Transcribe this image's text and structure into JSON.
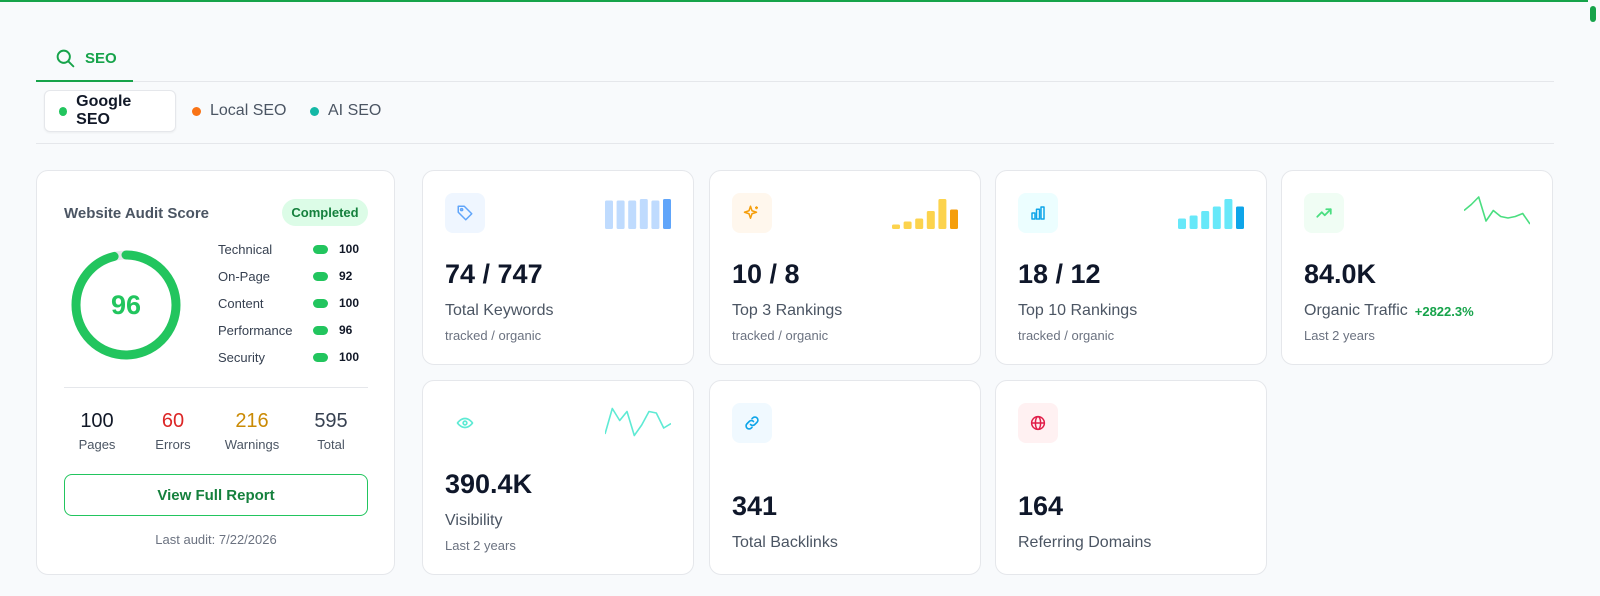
{
  "section_tab": {
    "label": "SEO",
    "icon": "search-icon",
    "accent": "#16a34a"
  },
  "sub_tabs": [
    {
      "label": "Google SEO",
      "dot_color": "#22c55e",
      "active": true
    },
    {
      "label": "Local SEO",
      "dot_color": "#f97316",
      "active": false
    },
    {
      "label": "AI SEO",
      "dot_color": "#14b8a6",
      "active": false
    }
  ],
  "audit": {
    "title": "Website Audit Score",
    "status": "Completed",
    "score": "96",
    "score_fraction": 0.96,
    "metrics": [
      {
        "label": "Technical",
        "value": "100"
      },
      {
        "label": "On-Page",
        "value": "92"
      },
      {
        "label": "Content",
        "value": "100"
      },
      {
        "label": "Performance",
        "value": "96"
      },
      {
        "label": "Security",
        "value": "100"
      }
    ],
    "stats": [
      {
        "value": "100",
        "label": "Pages",
        "color": "#111827"
      },
      {
        "value": "60",
        "label": "Errors",
        "color": "#dc2626"
      },
      {
        "value": "216",
        "label": "Warnings",
        "color": "#ca8a04"
      },
      {
        "value": "595",
        "label": "Total",
        "color": "#374151"
      }
    ],
    "button_label": "View Full Report",
    "last_audit": "Last audit: 7/22/2026"
  },
  "cards": [
    {
      "icon": "tag-icon",
      "value": "74 / 747",
      "label": "Total Keywords",
      "sub": "tracked / organic",
      "delta": "",
      "spark": "bars",
      "color": "#60a5fa",
      "light": "#bfdbfe",
      "bg": "#eff6ff",
      "bars": [
        0.95,
        0.95,
        0.95,
        1.0,
        0.95,
        1.0
      ]
    },
    {
      "icon": "sparkles-icon",
      "value": "10 / 8",
      "label": "Top 3 Rankings",
      "sub": "tracked / organic",
      "delta": "",
      "spark": "bars",
      "color": "#f59e0b",
      "light": "#fcd34d",
      "bg": "#fff7ed",
      "bars": [
        0.15,
        0.25,
        0.35,
        0.6,
        1.0,
        0.65
      ]
    },
    {
      "icon": "bar-chart-icon",
      "value": "18 / 12",
      "label": "Top 10 Rankings",
      "sub": "tracked / organic",
      "delta": "",
      "spark": "bars",
      "color": "#0ea5e9",
      "light": "#67e8f9",
      "bg": "#ecfeff",
      "bars": [
        0.35,
        0.45,
        0.6,
        0.75,
        1.0,
        0.75
      ]
    },
    {
      "icon": "trending-up-icon",
      "value": "84.0K",
      "label": "Organic Traffic",
      "sub": "Last 2 years",
      "delta": "+2822.3%",
      "spark": "line",
      "color": "#4ade80",
      "bg": "#f0fdf4",
      "line": [
        0.55,
        0.75,
        1.0,
        0.2,
        0.55,
        0.35,
        0.3,
        0.35,
        0.45,
        0.1
      ]
    },
    {
      "icon": "eye-icon",
      "value": "390.4K",
      "label": "Visibility",
      "sub": "Last 2 years",
      "delta": "",
      "spark": "line",
      "color": "#5eead4",
      "bg": "#ffffff",
      "line": [
        0.1,
        0.95,
        0.55,
        0.85,
        0.05,
        0.4,
        0.85,
        0.8,
        0.3,
        0.45
      ]
    },
    {
      "icon": "link-icon",
      "value": "341",
      "label": "Total Backlinks",
      "sub": "",
      "delta": "",
      "spark": "none",
      "color": "#0ea5e9",
      "bg": "#f0f9ff"
    },
    {
      "icon": "globe-icon",
      "value": "164",
      "label": "Referring Domains",
      "sub": "",
      "delta": "",
      "spark": "none",
      "color": "#e11d48",
      "bg": "#fff1f2"
    }
  ]
}
